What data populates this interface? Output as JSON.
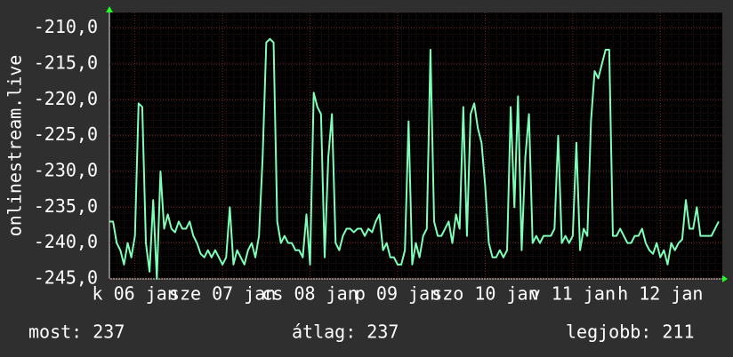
{
  "chart_data": {
    "type": "line",
    "y_label": "onlinestream.live",
    "x": [
      0,
      1,
      2,
      3,
      4,
      5,
      6,
      7,
      8,
      9,
      10,
      11,
      12,
      13,
      14,
      15,
      16,
      17,
      18,
      19,
      20,
      21,
      22,
      23,
      24,
      25,
      26,
      27,
      28,
      29,
      30,
      31,
      32,
      33,
      34,
      35,
      36,
      37,
      38,
      39,
      40,
      41,
      42,
      43,
      44,
      45,
      46,
      47,
      48,
      49,
      50,
      51,
      52,
      53,
      54,
      55,
      56,
      57,
      58,
      59,
      60,
      61,
      62,
      63,
      64,
      65,
      66,
      67,
      68,
      69,
      70,
      71,
      72,
      73,
      74,
      75,
      76,
      77,
      78,
      79,
      80,
      81,
      82,
      83,
      84,
      85,
      86,
      87,
      88,
      89,
      90,
      91,
      92,
      93,
      94,
      95,
      96,
      97,
      98,
      99,
      100,
      101,
      102,
      103,
      104,
      105,
      106,
      107,
      108,
      109,
      110,
      111,
      112,
      113,
      114,
      115,
      116,
      117,
      118,
      119,
      120,
      121,
      122,
      123,
      124,
      125,
      126,
      127,
      128,
      129,
      130,
      131,
      132,
      133,
      134,
      135,
      136,
      137,
      138,
      139,
      140,
      141,
      142,
      143,
      144,
      145,
      146,
      147,
      148,
      149,
      150,
      151,
      152,
      153,
      154,
      155,
      156,
      157,
      158,
      159,
      160,
      161,
      162,
      163,
      164,
      165,
      166,
      167
    ],
    "series": [
      {
        "color": "#7dffb8",
        "values": [
          -237,
          -237,
          -240,
          -241,
          -243,
          -240,
          -242,
          -239,
          -220.5,
          -221,
          -240,
          -244,
          -234,
          -245,
          -230,
          -238,
          -236,
          -238,
          -238.5,
          -237,
          -238,
          -238,
          -237,
          -239,
          -240,
          -241.5,
          -242,
          -241,
          -242,
          -241,
          -242,
          -243,
          -242,
          -235,
          -243,
          -241,
          -242,
          -243,
          -241,
          -240,
          -242,
          -239,
          -228,
          -212,
          -211.5,
          -212,
          -237,
          -240,
          -239,
          -240,
          -240,
          -241,
          -241,
          -242,
          -236,
          -243,
          -219,
          -221,
          -222,
          -242,
          -228,
          -222,
          -240,
          -241,
          -239,
          -238,
          -238,
          -238.5,
          -238,
          -238,
          -239,
          -238,
          -238.5,
          -237,
          -236,
          -241,
          -240,
          -242,
          -242,
          -243,
          -243,
          -241,
          -223,
          -243,
          -240,
          -242,
          -239,
          -238,
          -213,
          -237,
          -239,
          -239,
          -238,
          -237,
          -240,
          -236,
          -238,
          -221,
          -239,
          -222,
          -220.5,
          -224,
          -226,
          -232,
          -240,
          -242,
          -242,
          -241,
          -242,
          -241,
          -221,
          -235,
          -219.5,
          -241,
          -228,
          -222,
          -240,
          -239,
          -240,
          -239,
          -239,
          -239,
          -238,
          -225,
          -240,
          -239,
          -240,
          -239,
          -226,
          -241,
          -238,
          -239,
          -223,
          -216,
          -217,
          -215,
          -213,
          -213,
          -239,
          -239,
          -238,
          -239,
          -240,
          -240,
          -239,
          -239,
          -238,
          -240,
          -241,
          -241.5,
          -240,
          -242,
          -241,
          -243,
          -240,
          -241,
          -240,
          -239.5,
          -234,
          -238,
          -238,
          -235,
          -239,
          -239,
          -239,
          -239,
          -238,
          -237
        ]
      }
    ],
    "xlim": [
      0,
      168
    ],
    "xticks": [
      {
        "value": 7,
        "label": "k 06 jan"
      },
      {
        "value": 31,
        "label": "sze 07 jan"
      },
      {
        "value": 55,
        "label": "cs 08 jan"
      },
      {
        "value": 79,
        "label": "p 09 jan"
      },
      {
        "value": 103,
        "label": "szo 10 jan"
      },
      {
        "value": 127,
        "label": "v 11 jan"
      },
      {
        "value": 151,
        "label": "h 12 jan"
      }
    ],
    "ylim": [
      -245,
      -207.8
    ],
    "yticks": [
      {
        "value": -245,
        "label": "-245,0"
      },
      {
        "value": -240,
        "label": "-240,0"
      },
      {
        "value": -235,
        "label": "-235,0"
      },
      {
        "value": -230,
        "label": "-230,0"
      },
      {
        "value": -225,
        "label": "-225,0"
      },
      {
        "value": -220,
        "label": "-220,0"
      },
      {
        "value": -215,
        "label": "-215,0"
      },
      {
        "value": -210,
        "label": "-210,0"
      }
    ],
    "grid": true,
    "footer": [
      "most: 237",
      "átlag: 237",
      "legjobb: 211"
    ]
  }
}
